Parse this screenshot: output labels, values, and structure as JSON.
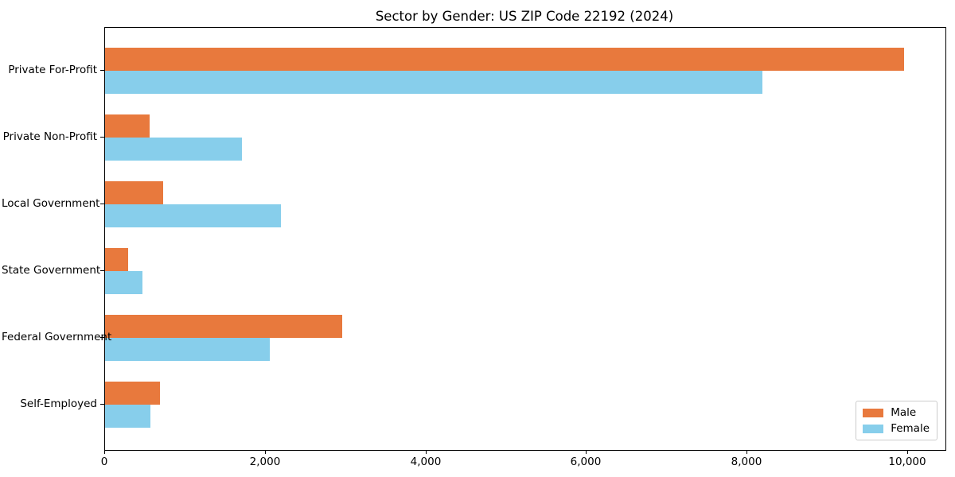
{
  "chart_data": {
    "type": "bar",
    "orientation": "horizontal",
    "title": "Sector by Gender: US ZIP Code 22192 (2024)",
    "categories": [
      "Private For-Profit",
      "Private Non-Profit",
      "Local Government",
      "State Government",
      "Federal Government",
      "Self-Employed"
    ],
    "series": [
      {
        "name": "Male",
        "color": "#e8793d",
        "values": [
          9950,
          555,
          725,
          290,
          2950,
          685
        ]
      },
      {
        "name": "Female",
        "color": "#87ceeb",
        "values": [
          8190,
          1705,
          2190,
          465,
          2050,
          565
        ]
      }
    ],
    "xlim": [
      0,
      10467
    ],
    "xticks": [
      0,
      2000,
      4000,
      6000,
      8000,
      10000
    ],
    "xtick_labels": [
      "0",
      "2,000",
      "4,000",
      "6,000",
      "8,000",
      "10,000"
    ],
    "ylabel": "",
    "xlabel": "",
    "grid": false,
    "legend_position": "lower right",
    "background_color": "#ffffff",
    "spine_color": "#000000"
  }
}
